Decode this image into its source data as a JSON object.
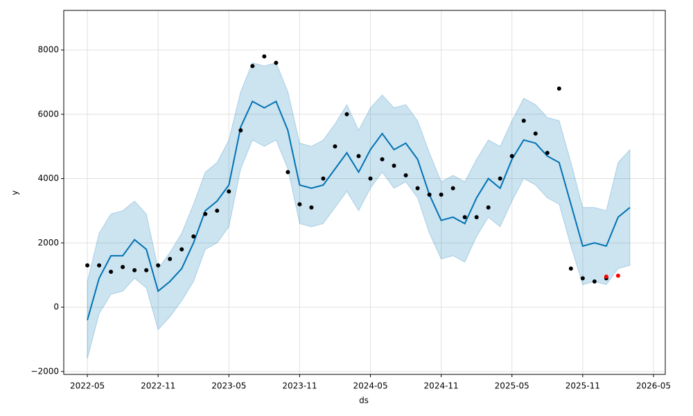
{
  "chart_data": {
    "type": "forecast",
    "xlabel": "ds",
    "ylabel": "y",
    "grid": true,
    "xlim": [
      "2022-03",
      "2026-06"
    ],
    "ylim": [
      -2090,
      9230
    ],
    "xticks": [
      "2022-05",
      "2022-11",
      "2023-05",
      "2023-11",
      "2024-05",
      "2024-11",
      "2025-05",
      "2025-11",
      "2026-05"
    ],
    "yticks": [
      {
        "value": -2000,
        "label": "−2000"
      },
      0,
      2000,
      4000,
      6000,
      8000
    ],
    "x": [
      "2022-05",
      "2022-06",
      "2022-07",
      "2022-08",
      "2022-09",
      "2022-10",
      "2022-11",
      "2022-12",
      "2023-01",
      "2023-02",
      "2023-03",
      "2023-04",
      "2023-05",
      "2023-06",
      "2023-07",
      "2023-08",
      "2023-09",
      "2023-10",
      "2023-11",
      "2023-12",
      "2024-01",
      "2024-02",
      "2024-03",
      "2024-04",
      "2024-05",
      "2024-06",
      "2024-07",
      "2024-08",
      "2024-09",
      "2024-10",
      "2024-11",
      "2024-12",
      "2025-01",
      "2025-02",
      "2025-03",
      "2025-04",
      "2025-05",
      "2025-06",
      "2025-07",
      "2025-08",
      "2025-09",
      "2025-10",
      "2025-11",
      "2025-12",
      "2026-01",
      "2026-02",
      "2026-03"
    ],
    "series": [
      {
        "type": "band",
        "color": "#0072b2",
        "upper": [
          800,
          2300,
          2900,
          3000,
          3300,
          2900,
          1200,
          1700,
          2300,
          3200,
          4200,
          4500,
          5200,
          6700,
          7600,
          7500,
          7600,
          6700,
          5100,
          5000,
          5200,
          5700,
          6300,
          5500,
          6200,
          6600,
          6200,
          6300,
          5800,
          4800,
          3900,
          4100,
          3900,
          4600,
          5200,
          5000,
          5800,
          6500,
          6300,
          5900,
          5800,
          4500,
          3100,
          3100,
          3000,
          4500,
          4900
        ],
        "lower": [
          -1600,
          -200,
          400,
          500,
          900,
          600,
          -700,
          -300,
          200,
          800,
          1800,
          2000,
          2500,
          4300,
          5200,
          5000,
          5200,
          4300,
          2600,
          2500,
          2600,
          3100,
          3600,
          3000,
          3700,
          4200,
          3700,
          3900,
          3400,
          2300,
          1500,
          1600,
          1400,
          2200,
          2800,
          2500,
          3300,
          4000,
          3800,
          3400,
          3200,
          1900,
          700,
          800,
          700,
          1200,
          1300
        ]
      },
      {
        "type": "line",
        "color": "#0072b2",
        "values": [
          -400,
          900,
          1600,
          1600,
          2100,
          1800,
          500,
          800,
          1200,
          2000,
          3000,
          3300,
          3800,
          5600,
          6400,
          6200,
          6400,
          5500,
          3800,
          3700,
          3800,
          4300,
          4800,
          4200,
          4900,
          5400,
          4900,
          5100,
          4600,
          3500,
          2700,
          2800,
          2600,
          3400,
          4000,
          3700,
          4600,
          5200,
          5100,
          4700,
          4500,
          3200,
          1900,
          2000,
          1900,
          2800,
          3100
        ]
      },
      {
        "type": "scatter",
        "color": "#000000",
        "values": [
          1300,
          1300,
          1100,
          1250,
          1150,
          1150,
          1300,
          1500,
          1800,
          2200,
          2900,
          3000,
          3600,
          5500,
          7500,
          7800,
          7600,
          4200,
          3200,
          3100,
          4000,
          5000,
          6000,
          4700,
          4000,
          4600,
          4400,
          4100,
          3700,
          3500,
          3500,
          3700,
          2800,
          2800,
          3100,
          4000,
          4700,
          5800,
          5400,
          4800,
          6800,
          1200,
          900,
          800,
          900,
          null,
          null
        ]
      },
      {
        "type": "scatter",
        "color": "#ff0000",
        "x": [
          "2026-01",
          "2026-02"
        ],
        "values": [
          950,
          980
        ]
      }
    ]
  }
}
